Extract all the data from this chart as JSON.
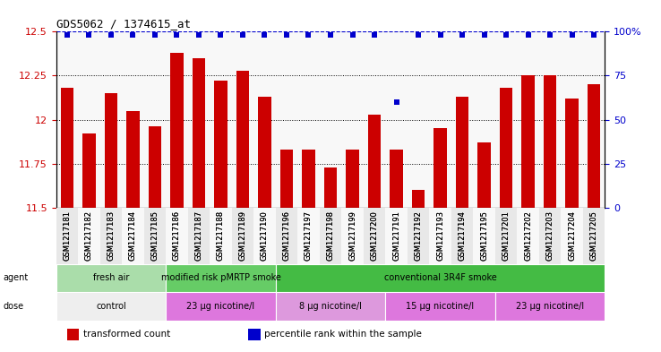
{
  "title": "GDS5062 / 1374615_at",
  "samples": [
    "GSM1217181",
    "GSM1217182",
    "GSM1217183",
    "GSM1217184",
    "GSM1217185",
    "GSM1217186",
    "GSM1217187",
    "GSM1217188",
    "GSM1217189",
    "GSM1217190",
    "GSM1217196",
    "GSM1217197",
    "GSM1217198",
    "GSM1217199",
    "GSM1217200",
    "GSM1217191",
    "GSM1217192",
    "GSM1217193",
    "GSM1217194",
    "GSM1217195",
    "GSM1217201",
    "GSM1217202",
    "GSM1217203",
    "GSM1217204",
    "GSM1217205"
  ],
  "bar_values": [
    12.18,
    11.92,
    12.15,
    12.05,
    11.96,
    12.38,
    12.35,
    12.22,
    12.28,
    12.13,
    11.83,
    11.83,
    11.73,
    11.83,
    12.03,
    11.83,
    11.6,
    11.95,
    12.13,
    11.87,
    12.18,
    12.25,
    12.25,
    12.12,
    12.2
  ],
  "percentile_values": [
    98,
    98,
    98,
    98,
    98,
    98,
    98,
    98,
    98,
    98,
    98,
    98,
    98,
    98,
    98,
    60,
    98,
    98,
    98,
    98,
    98,
    98,
    98,
    98,
    98
  ],
  "bar_color": "#cc0000",
  "percentile_color": "#0000cc",
  "ylim_left": [
    11.5,
    12.5
  ],
  "ylim_right": [
    0,
    100
  ],
  "yticks_left": [
    11.5,
    11.75,
    12.0,
    12.25,
    12.5
  ],
  "yticks_right": [
    0,
    25,
    50,
    75,
    100
  ],
  "ytick_labels_left": [
    "11.5",
    "11.75",
    "12",
    "12.25",
    "12.5"
  ],
  "ytick_labels_right": [
    "0",
    "25",
    "50",
    "75",
    "100%"
  ],
  "agent_groups": [
    {
      "label": "fresh air",
      "start": 0,
      "end": 5,
      "color": "#aaddaa"
    },
    {
      "label": "modified risk pMRTP smoke",
      "start": 5,
      "end": 10,
      "color": "#66cc66"
    },
    {
      "label": "conventional 3R4F smoke",
      "start": 10,
      "end": 25,
      "color": "#44bb44"
    }
  ],
  "dose_groups": [
    {
      "label": "control",
      "start": 0,
      "end": 5,
      "color": "#eeeeee"
    },
    {
      "label": "23 μg nicotine/l",
      "start": 5,
      "end": 10,
      "color": "#dd77dd"
    },
    {
      "label": "8 μg nicotine/l",
      "start": 10,
      "end": 15,
      "color": "#dd99dd"
    },
    {
      "label": "15 μg nicotine/l",
      "start": 15,
      "end": 20,
      "color": "#dd77dd"
    },
    {
      "label": "23 μg nicotine/l",
      "start": 20,
      "end": 25,
      "color": "#dd77dd"
    }
  ],
  "legend_items": [
    {
      "label": "transformed count",
      "color": "#cc0000"
    },
    {
      "label": "percentile rank within the sample",
      "color": "#0000cc"
    }
  ],
  "tick_label_color_left": "#cc0000",
  "tick_label_color_right": "#0000cc",
  "agent_label_fontsize": 7,
  "dose_label_fontsize": 7,
  "bar_width": 0.6,
  "perc_marker_size": 4
}
